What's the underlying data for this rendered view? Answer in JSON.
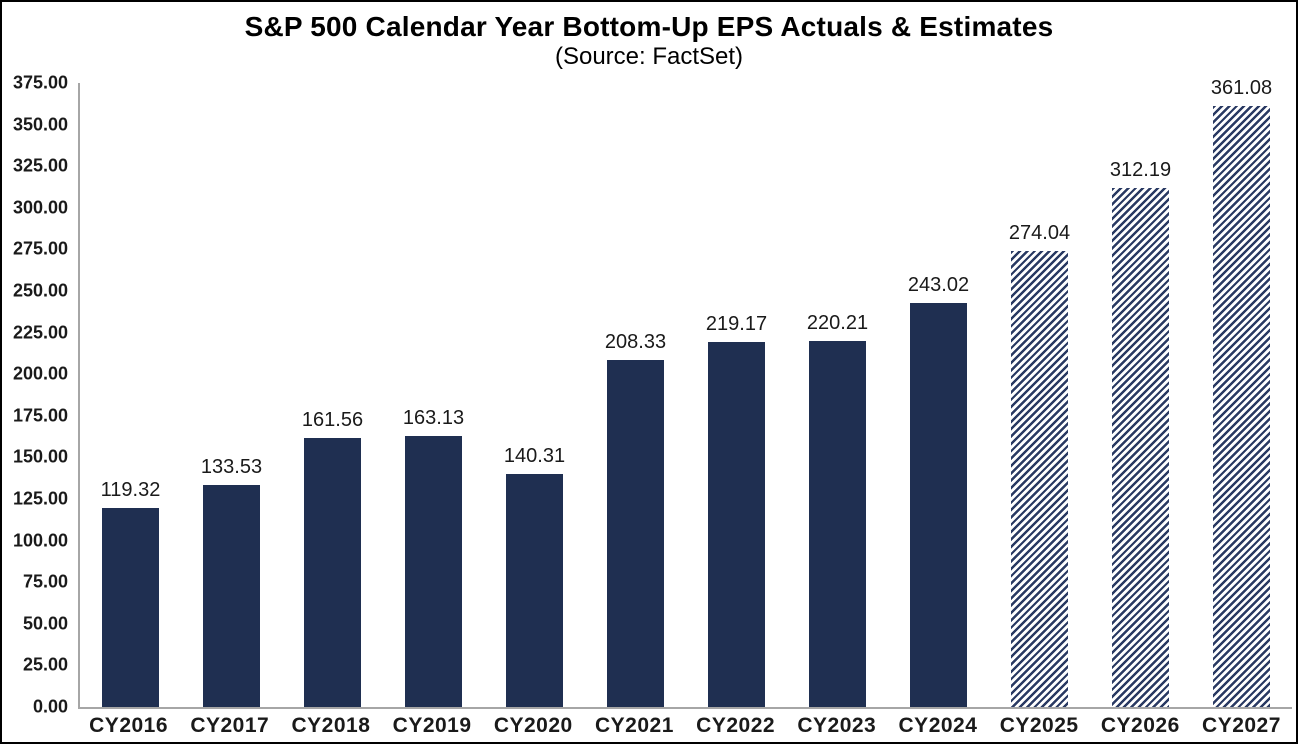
{
  "chart_data": {
    "type": "bar",
    "title": "S&P 500 Calendar Year Bottom-Up EPS Actuals & Estimates",
    "subtitle": "(Source: FactSet)",
    "categories": [
      "CY2016",
      "CY2017",
      "CY2018",
      "CY2019",
      "CY2020",
      "CY2021",
      "CY2022",
      "CY2023",
      "CY2024",
      "CY2025",
      "CY2026",
      "CY2027"
    ],
    "values": [
      119.32,
      133.53,
      161.56,
      163.13,
      140.31,
      208.33,
      219.17,
      220.21,
      243.02,
      274.04,
      312.19,
      361.08
    ],
    "estimate_flags": [
      false,
      false,
      false,
      false,
      false,
      false,
      false,
      false,
      false,
      true,
      true,
      true
    ],
    "bar_styles": {
      "actual": "solid",
      "estimate": "diagonal-hatch"
    },
    "xlabel": "",
    "ylabel": "",
    "ylim": [
      0,
      375
    ],
    "ytick_step": 25,
    "ytick_labels": [
      "0.00",
      "25.00",
      "50.00",
      "75.00",
      "100.00",
      "125.00",
      "150.00",
      "175.00",
      "200.00",
      "225.00",
      "250.00",
      "275.00",
      "300.00",
      "325.00",
      "350.00",
      "375.00"
    ],
    "grid": "off",
    "legend": "none",
    "colors": {
      "bar_solid": "#1F2F51",
      "bar_hatch_line": "#2A3A63",
      "axis_line": "#A6A6A6",
      "label_text": "#1A1A1A",
      "frame_border": "#000000"
    }
  }
}
